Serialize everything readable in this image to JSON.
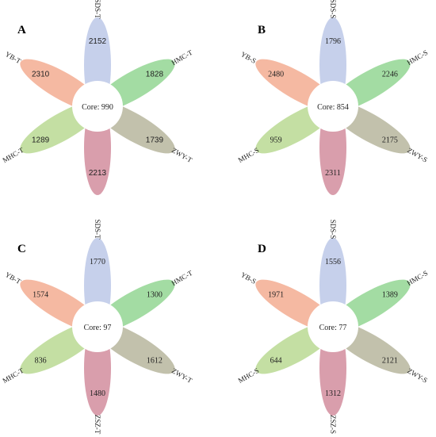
{
  "colors": {
    "petal_top": "#b9c6e6",
    "petal_upper_right": "#8fd48f",
    "petal_lower_right": "#b5b39a",
    "petal_bottom": "#d1899a",
    "petal_lower_left": "#b7d88f",
    "petal_upper_left": "#f3a98d",
    "core_fill": "#ffffff"
  },
  "panels": [
    {
      "letter": "A",
      "core_text": "Core: 990",
      "petals": [
        {
          "label": "SDS-T",
          "value": "2152"
        },
        {
          "label": "HMC-T",
          "value": "1828"
        },
        {
          "label": "ZWY-T",
          "value": "1739"
        },
        {
          "label": "",
          "value": "2213"
        },
        {
          "label": "MHC-T",
          "value": "1289"
        },
        {
          "label": "YB-T",
          "value": "2310"
        }
      ]
    },
    {
      "letter": "B",
      "core_text": "Core: 854",
      "petals": [
        {
          "label": "SDS-S",
          "value": "1796"
        },
        {
          "label": "HMC-S",
          "value": "2246"
        },
        {
          "label": "ZWY-S",
          "value": "2175"
        },
        {
          "label": "",
          "value": "2311"
        },
        {
          "label": "MHC-S",
          "value": "959"
        },
        {
          "label": "YB-S",
          "value": "2480"
        }
      ]
    },
    {
      "letter": "C",
      "core_text": "Core: 97",
      "petals": [
        {
          "label": "SDS-T",
          "value": "1770"
        },
        {
          "label": "HMC-T",
          "value": "1300"
        },
        {
          "label": "ZWY-T",
          "value": "1612"
        },
        {
          "label": "ZSZ-T",
          "value": "1480"
        },
        {
          "label": "MHC-T",
          "value": "836"
        },
        {
          "label": "YB-T",
          "value": "1574"
        }
      ]
    },
    {
      "letter": "D",
      "core_text": "Core: 77",
      "petals": [
        {
          "label": "SDS-S",
          "value": "1556"
        },
        {
          "label": "HMC-S",
          "value": "1389"
        },
        {
          "label": "ZWY-S",
          "value": "2121"
        },
        {
          "label": "ZSZ-S",
          "value": "1312"
        },
        {
          "label": "MHC-S",
          "value": "644"
        },
        {
          "label": "YB-S",
          "value": "1971"
        }
      ]
    }
  ]
}
